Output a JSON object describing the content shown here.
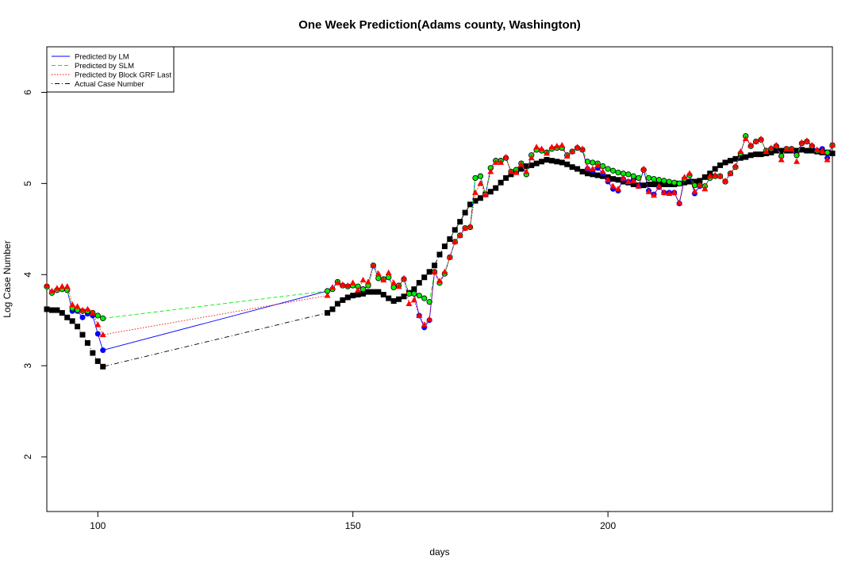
{
  "chart_data": {
    "type": "line",
    "title": "One Week Prediction(Adams county, Washington)",
    "xlabel": "days",
    "ylabel": "Log Case Number",
    "xlim": [
      90,
      244
    ],
    "ylim": [
      1.4,
      6.5
    ],
    "x_ticks": [
      100,
      150,
      200
    ],
    "y_ticks": [
      2,
      3,
      4,
      5,
      6
    ],
    "grid": false,
    "legend_position": "top-left",
    "legend": [
      {
        "label": "Predicted by LM",
        "color": "#0000ff",
        "dash": "solid"
      },
      {
        "label": "Predicted by SLM",
        "color": "#00ee00",
        "dash": "dashed"
      },
      {
        "label": "Predicted by Block GRF Last",
        "color": "#ff0000",
        "dash": "dotted"
      },
      {
        "label": "Actual Case Number",
        "color": "#000000",
        "dash": "dotdash"
      }
    ],
    "x": [
      90,
      91,
      92,
      93,
      94,
      95,
      96,
      97,
      98,
      99,
      100,
      101,
      145,
      146,
      147,
      148,
      149,
      150,
      151,
      152,
      153,
      154,
      155,
      156,
      157,
      158,
      159,
      160,
      161,
      162,
      163,
      164,
      165,
      166,
      167,
      168,
      169,
      170,
      171,
      172,
      173,
      174,
      175,
      176,
      177,
      178,
      179,
      180,
      181,
      182,
      183,
      184,
      185,
      186,
      187,
      188,
      189,
      190,
      191,
      192,
      193,
      194,
      195,
      196,
      197,
      198,
      199,
      200,
      201,
      202,
      203,
      204,
      205,
      206,
      207,
      208,
      209,
      210,
      211,
      212,
      213,
      214,
      215,
      216,
      217,
      218,
      219,
      220,
      221,
      222,
      223,
      224,
      225,
      226,
      227,
      228,
      229,
      230,
      231,
      232,
      233,
      234,
      235,
      236,
      237,
      238,
      239,
      240,
      241,
      242,
      243,
      244
    ],
    "series": [
      {
        "name": "Predicted by LM",
        "color": "#0000ff",
        "values": [
          3.87,
          3.8,
          3.83,
          3.84,
          3.83,
          3.6,
          3.6,
          3.53,
          3.57,
          3.55,
          3.35,
          3.17,
          3.82,
          3.84,
          3.92,
          3.88,
          3.87,
          3.88,
          3.87,
          3.84,
          3.88,
          4.1,
          3.96,
          3.95,
          3.97,
          3.86,
          3.88,
          3.95,
          3.79,
          3.79,
          3.55,
          3.42,
          3.5,
          4.03,
          3.91,
          4.01,
          4.19,
          4.36,
          4.43,
          4.51,
          4.52,
          5.06,
          5.08,
          4.88,
          5.17,
          5.25,
          5.25,
          5.28,
          5.13,
          5.15,
          5.22,
          5.1,
          5.31,
          5.37,
          5.36,
          5.34,
          5.38,
          5.39,
          5.39,
          5.31,
          5.35,
          5.39,
          5.37,
          5.16,
          5.14,
          5.17,
          5.11,
          5.02,
          4.94,
          4.92,
          5.05,
          5.02,
          5.04,
          4.97,
          5.15,
          4.92,
          4.88,
          4.96,
          4.9,
          4.9,
          4.9,
          4.78,
          5.05,
          5.09,
          4.89,
          4.97,
          4.97,
          5.06,
          5.08,
          5.08,
          5.02,
          5.11,
          5.18,
          5.33,
          5.52,
          5.41,
          5.46,
          5.48,
          5.36,
          5.38,
          5.41,
          5.3,
          5.38,
          5.38,
          5.31,
          5.44,
          5.46,
          5.41,
          5.36,
          5.38,
          5.28,
          5.42
        ]
      },
      {
        "name": "Predicted by SLM",
        "color": "#00ee00",
        "values": [
          3.87,
          3.8,
          3.83,
          3.84,
          3.83,
          3.63,
          3.61,
          3.6,
          3.6,
          3.58,
          3.55,
          3.52,
          3.82,
          3.84,
          3.92,
          3.88,
          3.87,
          3.88,
          3.87,
          3.84,
          3.88,
          4.1,
          3.96,
          3.95,
          3.97,
          3.86,
          3.88,
          3.95,
          3.79,
          3.79,
          3.77,
          3.74,
          3.7,
          4.03,
          3.91,
          4.01,
          4.19,
          4.36,
          4.43,
          4.51,
          4.52,
          5.06,
          5.08,
          4.88,
          5.17,
          5.25,
          5.25,
          5.28,
          5.13,
          5.15,
          5.22,
          5.1,
          5.31,
          5.37,
          5.36,
          5.34,
          5.38,
          5.39,
          5.39,
          5.31,
          5.35,
          5.39,
          5.37,
          5.24,
          5.23,
          5.22,
          5.19,
          5.16,
          5.14,
          5.12,
          5.11,
          5.1,
          5.08,
          5.06,
          5.15,
          5.06,
          5.05,
          5.04,
          5.03,
          5.02,
          5.01,
          5.0,
          5.05,
          5.09,
          4.98,
          4.98,
          4.97,
          5.06,
          5.08,
          5.08,
          5.02,
          5.11,
          5.18,
          5.33,
          5.52,
          5.41,
          5.46,
          5.48,
          5.36,
          5.38,
          5.41,
          5.3,
          5.38,
          5.38,
          5.31,
          5.44,
          5.46,
          5.41,
          5.36,
          5.35,
          5.34,
          5.42
        ]
      },
      {
        "name": "Predicted by Block GRF Last",
        "color": "#ff0000",
        "values": [
          3.88,
          3.82,
          3.85,
          3.87,
          3.87,
          3.67,
          3.65,
          3.61,
          3.62,
          3.58,
          3.45,
          3.34,
          3.77,
          3.86,
          3.91,
          3.89,
          3.88,
          3.91,
          3.83,
          3.94,
          3.92,
          4.1,
          4.01,
          3.94,
          4.02,
          3.91,
          3.87,
          3.96,
          3.68,
          3.72,
          3.55,
          3.45,
          3.51,
          4.03,
          3.93,
          4.03,
          4.19,
          4.36,
          4.43,
          4.51,
          4.53,
          4.9,
          5.0,
          4.88,
          5.13,
          5.23,
          5.23,
          5.29,
          5.13,
          5.12,
          5.21,
          5.13,
          5.28,
          5.4,
          5.38,
          5.33,
          5.4,
          5.41,
          5.42,
          5.3,
          5.35,
          5.4,
          5.38,
          5.17,
          5.16,
          5.2,
          5.13,
          5.04,
          4.97,
          4.94,
          5.06,
          5.02,
          5.03,
          4.97,
          5.16,
          4.91,
          4.87,
          4.97,
          4.9,
          4.89,
          4.9,
          4.79,
          5.07,
          5.11,
          4.91,
          4.98,
          4.94,
          5.08,
          5.09,
          5.08,
          5.03,
          5.11,
          5.19,
          5.35,
          5.49,
          5.42,
          5.46,
          5.49,
          5.35,
          5.39,
          5.42,
          5.26,
          5.38,
          5.38,
          5.24,
          5.45,
          5.47,
          5.42,
          5.37,
          5.36,
          5.26,
          5.42
        ]
      },
      {
        "name": "Actual Case Number",
        "color": "#000000",
        "values": [
          3.62,
          3.61,
          3.61,
          3.58,
          3.53,
          3.49,
          3.43,
          3.34,
          3.25,
          3.14,
          3.05,
          2.99,
          3.58,
          3.62,
          3.68,
          3.72,
          3.75,
          3.77,
          3.78,
          3.79,
          3.81,
          3.81,
          3.81,
          3.78,
          3.74,
          3.71,
          3.73,
          3.76,
          3.8,
          3.84,
          3.91,
          3.97,
          4.03,
          4.1,
          4.22,
          4.31,
          4.39,
          4.49,
          4.58,
          4.68,
          4.77,
          4.81,
          4.84,
          4.88,
          4.91,
          4.95,
          5.01,
          5.06,
          5.1,
          5.13,
          5.16,
          5.19,
          5.2,
          5.22,
          5.24,
          5.26,
          5.25,
          5.24,
          5.23,
          5.21,
          5.18,
          5.16,
          5.13,
          5.11,
          5.1,
          5.09,
          5.08,
          5.07,
          5.05,
          5.04,
          5.02,
          5.01,
          4.99,
          4.98,
          4.98,
          4.99,
          4.99,
          5.0,
          4.99,
          4.99,
          4.99,
          5.0,
          5.01,
          5.02,
          5.02,
          5.03,
          5.07,
          5.11,
          5.16,
          5.2,
          5.23,
          5.25,
          5.27,
          5.28,
          5.29,
          5.31,
          5.32,
          5.32,
          5.33,
          5.34,
          5.36,
          5.36,
          5.36,
          5.36,
          5.36,
          5.37,
          5.36,
          5.36,
          5.35,
          5.34,
          5.34,
          5.33
        ]
      }
    ]
  }
}
